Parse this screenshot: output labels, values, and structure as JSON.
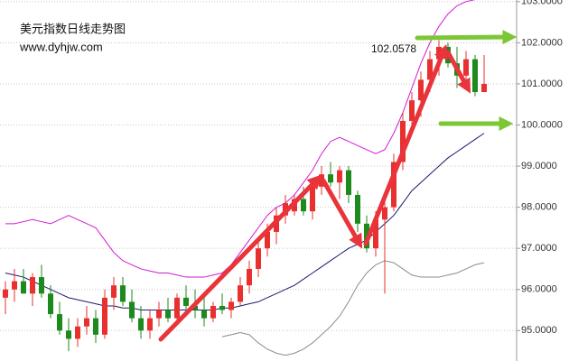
{
  "chart_data": {
    "type": "candlestick",
    "title": "美元指数日线走势图",
    "subtitle": "www.dyhjw.com",
    "annotation": "102.0578",
    "ylim": [
      94.26,
      103.04
    ],
    "yticks": [
      {
        "value": 95,
        "label": "95.0000"
      },
      {
        "value": 96,
        "label": "96.0000"
      },
      {
        "value": 97,
        "label": "97.0000"
      },
      {
        "value": 98,
        "label": "98.0000"
      },
      {
        "value": 99,
        "label": "99.0000"
      },
      {
        "value": 100,
        "label": "100.0000"
      },
      {
        "value": 101,
        "label": "101.0000"
      },
      {
        "value": 102,
        "label": "102.0000"
      },
      {
        "value": 103,
        "label": "103.0000"
      }
    ],
    "grid": true,
    "up_color": "#e8302f",
    "down_color": "#1c8a1c",
    "open": [
      95.8,
      96.0,
      96.2,
      95.9,
      96.3,
      95.9,
      95.4,
      95.0,
      94.8,
      95.1,
      95.3,
      94.9,
      95.8,
      96.1,
      95.7,
      95.3,
      95.0,
      95.3,
      95.5,
      95.3,
      95.8,
      95.6,
      95.5,
      95.3,
      95.6,
      95.5,
      95.7,
      96.1,
      96.5,
      97.0,
      97.4,
      97.8,
      97.9,
      98.2,
      97.9,
      98.5,
      98.8,
      98.6,
      98.9,
      98.3,
      97.6,
      97.0,
      97.7,
      98.0,
      99.1,
      100.1,
      100.6,
      101.1,
      101.6,
      101.9,
      101.5,
      101.2,
      101.6,
      100.8
    ],
    "high": [
      96.2,
      96.5,
      96.5,
      96.4,
      96.6,
      96.1,
      95.7,
      95.3,
      95.3,
      95.6,
      95.5,
      96.0,
      96.3,
      96.3,
      96.0,
      95.6,
      95.5,
      95.7,
      95.8,
      95.9,
      96.1,
      96.0,
      95.8,
      95.7,
      95.9,
      95.8,
      96.3,
      96.7,
      97.2,
      97.6,
      98.0,
      98.3,
      98.3,
      98.5,
      98.7,
      99.0,
      99.1,
      99.0,
      99.0,
      98.4,
      97.8,
      97.9,
      98.2,
      99.3,
      100.3,
      100.8,
      101.3,
      101.8,
      102.06,
      102.0,
      101.9,
      101.8,
      101.7,
      101.7
    ],
    "low": [
      95.4,
      95.7,
      95.9,
      95.6,
      95.8,
      95.3,
      94.9,
      94.5,
      94.6,
      94.9,
      94.7,
      94.8,
      95.5,
      95.6,
      95.2,
      94.8,
      94.8,
      95.1,
      95.2,
      95.2,
      95.5,
      95.3,
      95.1,
      95.2,
      95.4,
      95.3,
      95.6,
      95.9,
      96.3,
      96.8,
      97.1,
      97.6,
      97.8,
      97.8,
      97.7,
      98.3,
      98.5,
      98.2,
      98.1,
      97.4,
      96.9,
      96.8,
      95.9,
      97.9,
      98.9,
      99.8,
      100.2,
      100.8,
      101.2,
      101.4,
      100.9,
      100.9,
      100.7,
      100.8
    ],
    "close": [
      96.0,
      96.2,
      95.9,
      96.3,
      95.9,
      95.4,
      95.0,
      94.8,
      95.1,
      95.3,
      94.9,
      95.8,
      96.1,
      95.7,
      95.3,
      95.0,
      95.3,
      95.5,
      95.3,
      95.8,
      95.6,
      95.5,
      95.3,
      95.6,
      95.5,
      95.7,
      96.1,
      96.5,
      97.0,
      97.4,
      97.8,
      98.1,
      98.2,
      97.9,
      98.5,
      98.8,
      98.6,
      98.9,
      98.3,
      97.6,
      97.0,
      97.7,
      98.0,
      99.1,
      100.1,
      100.6,
      101.1,
      101.6,
      101.9,
      101.5,
      101.2,
      101.6,
      100.8,
      101.0
    ],
    "series": [
      {
        "color": "#1a1a6e",
        "values": [
          96.4,
          96.35,
          96.3,
          96.2,
          96.1,
          96.0,
          95.9,
          95.8,
          95.75,
          95.7,
          95.65,
          95.6,
          95.6,
          95.55,
          95.55,
          95.5,
          95.5,
          95.5,
          95.5,
          95.5,
          95.5,
          95.5,
          95.5,
          95.5,
          95.55,
          95.55,
          95.6,
          95.65,
          95.7,
          95.8,
          95.9,
          96.0,
          96.1,
          96.25,
          96.4,
          96.55,
          96.7,
          96.85,
          97.0,
          97.1,
          97.2,
          97.4,
          97.6,
          97.8,
          98.1,
          98.4,
          98.6,
          98.8,
          99.0,
          99.2,
          99.35,
          99.5,
          99.65,
          99.8
        ]
      },
      {
        "color": "#d21ad2",
        "values": [
          97.6,
          97.6,
          97.65,
          97.7,
          97.65,
          97.6,
          97.7,
          97.8,
          97.7,
          97.6,
          97.5,
          97.2,
          96.9,
          96.7,
          96.6,
          96.5,
          96.45,
          96.4,
          96.4,
          96.35,
          96.3,
          96.3,
          96.3,
          96.35,
          96.4,
          96.6,
          96.9,
          97.2,
          97.5,
          97.8,
          98.0,
          98.1,
          98.3,
          98.6,
          98.9,
          99.3,
          99.6,
          99.7,
          99.6,
          99.5,
          99.4,
          99.3,
          99.4,
          99.8,
          100.3,
          100.9,
          101.5,
          102.0,
          102.4,
          102.7,
          102.9,
          103.0,
          103.05,
          103.1
        ]
      },
      {
        "color": "#8c8c8c",
        "values": [
          null,
          null,
          null,
          null,
          null,
          null,
          null,
          null,
          null,
          null,
          null,
          null,
          null,
          null,
          null,
          null,
          null,
          null,
          null,
          null,
          null,
          null,
          null,
          null,
          94.85,
          94.9,
          94.95,
          94.9,
          94.7,
          94.55,
          94.45,
          94.4,
          94.45,
          94.55,
          94.7,
          94.9,
          95.1,
          95.35,
          95.7,
          96.1,
          96.4,
          96.6,
          96.7,
          96.65,
          96.5,
          96.35,
          96.3,
          96.3,
          96.3,
          96.35,
          96.4,
          96.5,
          96.6,
          96.65
        ]
      }
    ]
  }
}
